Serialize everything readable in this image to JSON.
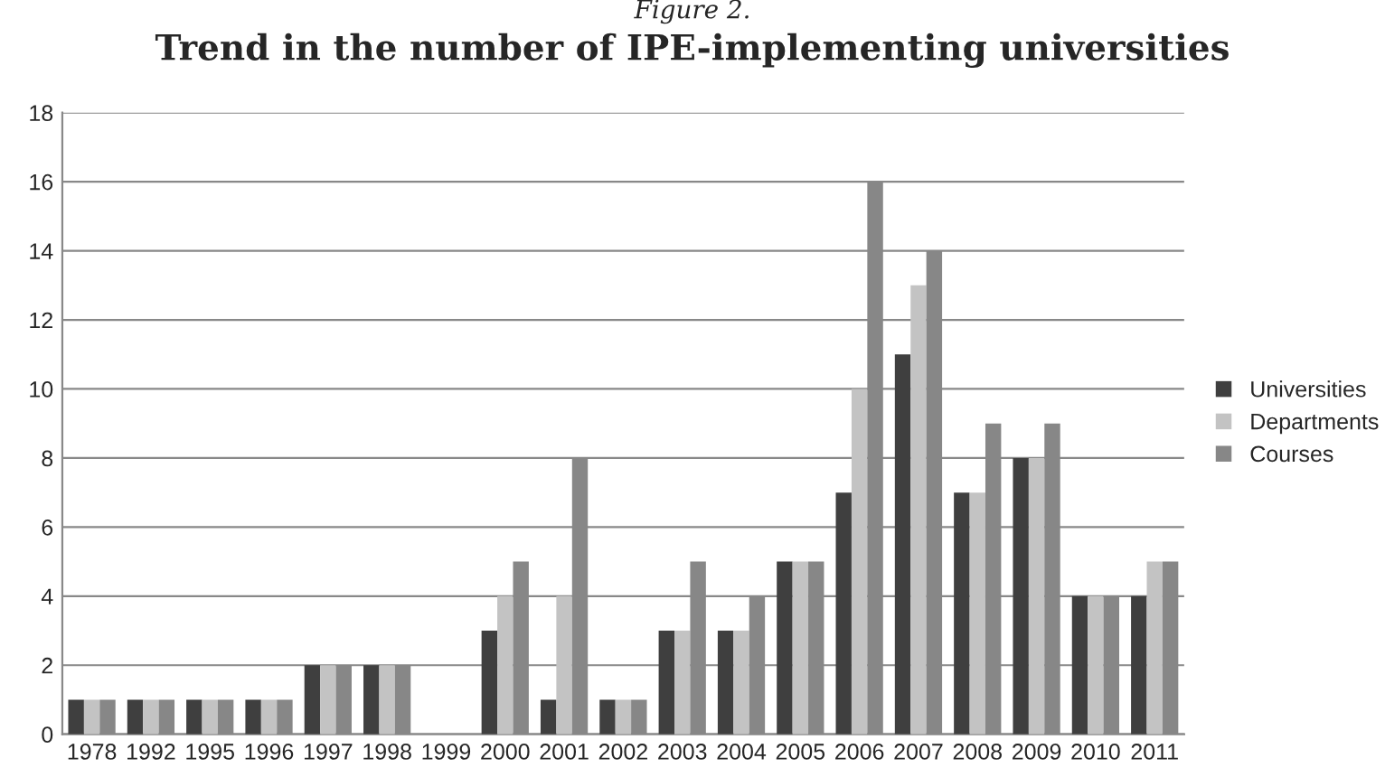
{
  "chart_data": {
    "type": "bar",
    "title": "Trend in the number of IPE-implementing universities",
    "annotations": [
      "Figure 2."
    ],
    "categories": [
      "1978",
      "1992",
      "1995",
      "1996",
      "1997",
      "1998",
      "1999",
      "2000",
      "2001",
      "2002",
      "2003",
      "2004",
      "2005",
      "2006",
      "2007",
      "2008",
      "2009",
      "2010",
      "2011"
    ],
    "series": [
      {
        "name": "Universities",
        "color": "#3f3f3f",
        "values": [
          1,
          1,
          1,
          1,
          2,
          2,
          0,
          3,
          1,
          1,
          3,
          3,
          5,
          7,
          11,
          7,
          8,
          4,
          4
        ]
      },
      {
        "name": "Departments",
        "color": "#c3c3c3",
        "values": [
          1,
          1,
          1,
          1,
          2,
          2,
          0,
          4,
          4,
          1,
          3,
          3,
          5,
          10,
          13,
          7,
          8,
          4,
          5
        ]
      },
      {
        "name": "Courses",
        "color": "#878787",
        "values": [
          1,
          1,
          1,
          1,
          2,
          2,
          0,
          5,
          8,
          1,
          5,
          4,
          5,
          16,
          14,
          9,
          9,
          4,
          5
        ]
      }
    ],
    "ylim": [
      0,
      18
    ],
    "yticks": [
      0,
      2,
      4,
      6,
      8,
      10,
      12,
      14,
      16,
      18
    ],
    "grid": "y",
    "legend": "right"
  }
}
